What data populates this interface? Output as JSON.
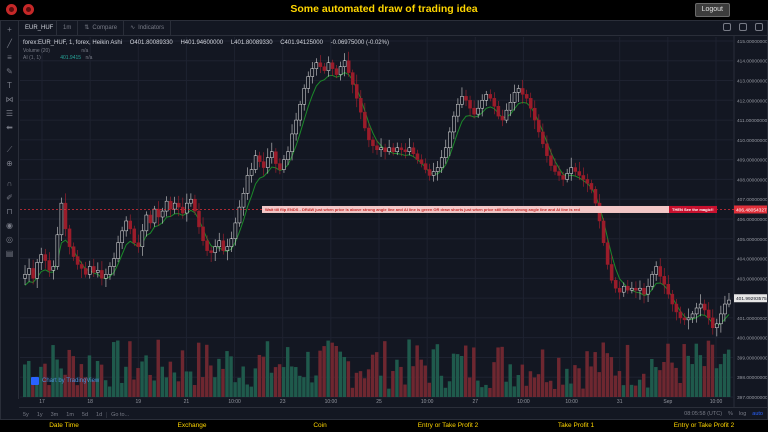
{
  "app": {
    "title": "Some automated draw of trading idea",
    "logout_label": "Logout",
    "colors": {
      "title": "#ffd600",
      "background": "#000000"
    }
  },
  "toolbar": {
    "symbol": "EUR_HUF",
    "interval": "1m",
    "compare_label": "Compare",
    "indicators_label": "Indicators"
  },
  "legend": {
    "symbol_line": "forex:EUR_HUF, 1, forex, Heikin Ashi",
    "open": "O401.80089330",
    "high": "H401.94600000",
    "low": "L401.80089330",
    "close": "C401.94125000",
    "change": "-0.06975000 (-0.02%)",
    "volume_label": "Volume (20)",
    "volume_values": "n/a",
    "ai_label": "AI (1, 1)",
    "ai_value1": "401.9415",
    "ai_value2": "n/a"
  },
  "chart_data": {
    "type": "candlestick",
    "price_axis": [
      "415.00000000",
      "414.00000000",
      "413.00000000",
      "412.00000000",
      "411.00000000",
      "410.00000000",
      "409.00000000",
      "408.00000000",
      "407.00000000",
      "406.00000000",
      "405.00000000",
      "404.00000000",
      "403.00000000",
      "402.00000000",
      "401.00000000",
      "400.00000000",
      "399.00000000",
      "398.00000000",
      "397.00000000"
    ],
    "ylim": [
      397,
      415.2
    ],
    "time_axis": [
      "17",
      "18",
      "19",
      "21",
      "10:00",
      "23",
      "10:00",
      "25",
      "10:00",
      "27",
      "10:00",
      "10:00",
      "31",
      "Sep",
      "10:00"
    ],
    "last_price_label": "401.99293575",
    "marker_price_label": "406.48054327",
    "marker_price": 406.48,
    "candle_closes": [
      403.2,
      403.5,
      403.0,
      403.8,
      404.2,
      403.9,
      403.4,
      403.6,
      405.2,
      406.8,
      405.5,
      404.6,
      404.1,
      403.7,
      403.5,
      403.2,
      403.6,
      403.3,
      403.4,
      403.0,
      403.2,
      403.6,
      404.0,
      404.8,
      405.4,
      405.9,
      405.5,
      404.8,
      404.6,
      405.4,
      406.2,
      405.8,
      406.5,
      406.1,
      406.4,
      406.9,
      406.5,
      406.8,
      406.6,
      406.3,
      406.8,
      407.0,
      406.4,
      405.6,
      404.9,
      404.4,
      404.3,
      404.6,
      404.9,
      404.4,
      404.6,
      405.0,
      405.8,
      406.6,
      407.3,
      408.2,
      408.5,
      409.2,
      408.9,
      408.6,
      409.1,
      409.4,
      408.8,
      408.5,
      409.0,
      409.4,
      410.3,
      411.0,
      411.8,
      412.6,
      413.2,
      413.6,
      413.9,
      413.7,
      413.5,
      413.9,
      413.6,
      413.3,
      413.7,
      414.0,
      413.4,
      412.8,
      412.1,
      411.4,
      410.6,
      410.0,
      409.7,
      409.5,
      409.6,
      409.4,
      409.6,
      409.4,
      409.6,
      409.5,
      409.4,
      409.6,
      409.3,
      409.0,
      408.8,
      408.5,
      408.2,
      408.4,
      408.6,
      409.1,
      409.6,
      410.4,
      411.2,
      411.8,
      412.2,
      412.0,
      411.6,
      411.3,
      411.6,
      412.0,
      412.3,
      412.1,
      411.7,
      411.2,
      411.0,
      411.5,
      411.9,
      412.4,
      412.6,
      412.3,
      412.1,
      411.6,
      411.0,
      410.4,
      409.8,
      409.2,
      408.7,
      408.4,
      408.2,
      408.0,
      408.3,
      408.6,
      408.4,
      408.2,
      408.0,
      407.8,
      407.5,
      406.8,
      405.9,
      404.8,
      403.7,
      402.9,
      402.5,
      402.3,
      402.6,
      402.4,
      402.5,
      402.4,
      402.5,
      402.2,
      402.6,
      403.2,
      403.6,
      403.1,
      402.7,
      402.2,
      401.7,
      401.3,
      401.0,
      400.9,
      401.0,
      401.2,
      401.5,
      401.7,
      401.4,
      401.0,
      400.5,
      400.7,
      401.2,
      401.7,
      401.9
    ],
    "volume_note": "volume histogram"
  },
  "annotation": {
    "banner_text": "Wait till flip ENDS  -  DRAW  just when  price is above strong angle line and AI line is green        OR       draw shorts just when price still below strong angle line and AI line is red",
    "then_text": "THEN See the magic!!"
  },
  "watermark": "Chart by TradingView",
  "bottom": {
    "ranges": [
      "5y",
      "1y",
      "3m",
      "1m",
      "5d",
      "1d"
    ],
    "goto_label": "Go to...",
    "time_readout": "08:05:58 (UTC)",
    "pct": "%",
    "log": "log",
    "auto": "auto"
  },
  "footer": [
    "Date Time",
    "Exchange",
    "Coin",
    "Entry or Take Profit 2",
    "Take Profit 1",
    "Entry or Take Profit 2"
  ]
}
